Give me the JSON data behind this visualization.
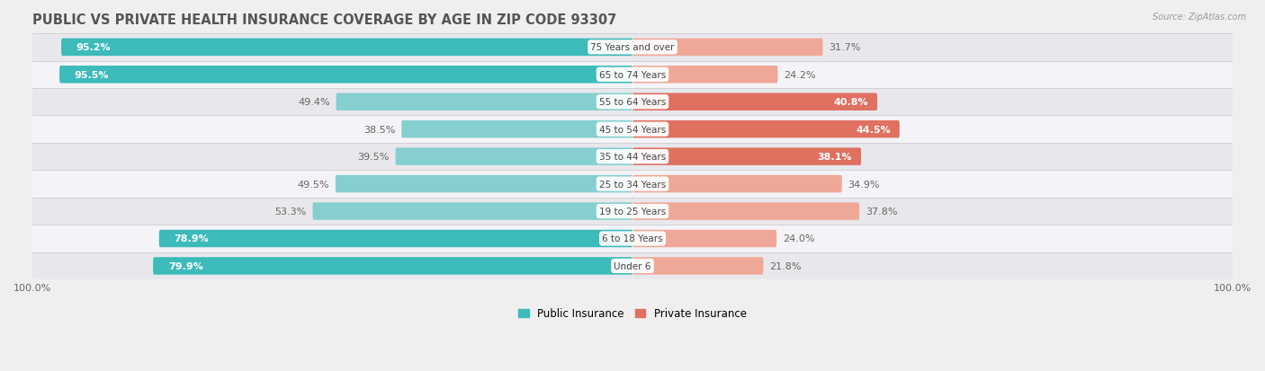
{
  "title": "PUBLIC VS PRIVATE HEALTH INSURANCE COVERAGE BY AGE IN ZIP CODE 93307",
  "source": "Source: ZipAtlas.com",
  "categories": [
    "Under 6",
    "6 to 18 Years",
    "19 to 25 Years",
    "25 to 34 Years",
    "35 to 44 Years",
    "45 to 54 Years",
    "55 to 64 Years",
    "65 to 74 Years",
    "75 Years and over"
  ],
  "public_values": [
    79.9,
    78.9,
    53.3,
    49.5,
    39.5,
    38.5,
    49.4,
    95.5,
    95.2
  ],
  "private_values": [
    21.8,
    24.0,
    37.8,
    34.9,
    38.1,
    44.5,
    40.8,
    24.2,
    31.7
  ],
  "public_color_dark": "#3DBABA",
  "public_color_light": "#85CFCF",
  "private_color_dark": "#E07060",
  "private_color_light": "#EFA898",
  "row_bg_color_dark": "#E8E8EC",
  "row_bg_color_light": "#F4F4F8",
  "title_color": "#555555",
  "label_dark_color": "#FFFFFF",
  "label_light_color": "#666666",
  "source_color": "#999999",
  "max_value": 100.0,
  "bar_height": 0.62,
  "title_fontsize": 10.5,
  "label_fontsize": 8.0,
  "legend_fontsize": 8.5,
  "pub_dark_threshold": 70,
  "priv_dark_threshold": 38
}
